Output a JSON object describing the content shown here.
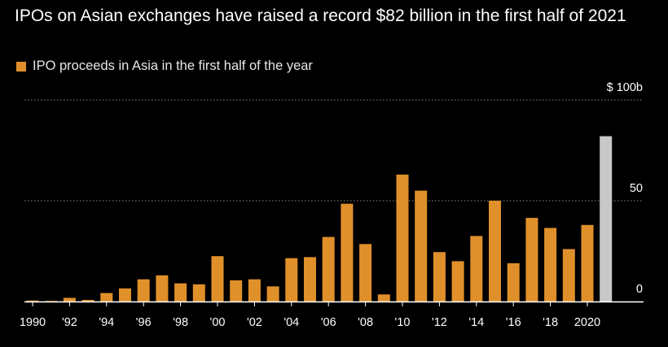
{
  "chart_data": {
    "type": "bar",
    "title": "IPOs on Asian exchanges have raised a record $82 billion in the first half of 2021",
    "legend": [
      {
        "label": "IPO proceeds in Asia in the first half of the year",
        "color": "#e0902a"
      }
    ],
    "highlight_color": "#c8c8c8",
    "highlight_category": "2021",
    "categories": [
      "1990",
      "1991",
      "1992",
      "1993",
      "1994",
      "1995",
      "1996",
      "1997",
      "1998",
      "1999",
      "2000",
      "2001",
      "2002",
      "2003",
      "2004",
      "2005",
      "2006",
      "2007",
      "2008",
      "2009",
      "2010",
      "2011",
      "2012",
      "2013",
      "2014",
      "2015",
      "2016",
      "2017",
      "2018",
      "2019",
      "2020",
      "2021"
    ],
    "values": [
      0.5,
      0.3,
      1.8,
      0.8,
      4.2,
      6.5,
      11,
      13,
      9,
      8.5,
      22.5,
      10.5,
      11,
      7.5,
      21.5,
      22,
      32,
      48.5,
      28.5,
      3.5,
      63,
      55,
      24.5,
      20,
      32.5,
      50,
      19,
      41.5,
      36.5,
      26,
      38,
      82
    ],
    "x_tick_labels": [
      {
        "category": "1990",
        "label": "1990"
      },
      {
        "category": "1992",
        "label": "'92"
      },
      {
        "category": "1994",
        "label": "'94"
      },
      {
        "category": "1996",
        "label": "'96"
      },
      {
        "category": "1998",
        "label": "'98"
      },
      {
        "category": "2000",
        "label": "'00"
      },
      {
        "category": "2002",
        "label": "'02"
      },
      {
        "category": "2004",
        "label": "'04"
      },
      {
        "category": "2006",
        "label": "'06"
      },
      {
        "category": "2008",
        "label": "'08"
      },
      {
        "category": "2010",
        "label": "'10"
      },
      {
        "category": "2012",
        "label": "'12"
      },
      {
        "category": "2014",
        "label": "'14"
      },
      {
        "category": "2016",
        "label": "'16"
      },
      {
        "category": "2018",
        "label": "'18"
      },
      {
        "category": "2020",
        "label": "2020"
      }
    ],
    "y_ticks": [
      {
        "value": 0,
        "label": "0"
      },
      {
        "value": 50,
        "label": "50"
      },
      {
        "value": 100,
        "label": "$ 100b"
      }
    ],
    "ylim": [
      0,
      100
    ],
    "xlabel": "",
    "ylabel": "",
    "grid": true
  }
}
